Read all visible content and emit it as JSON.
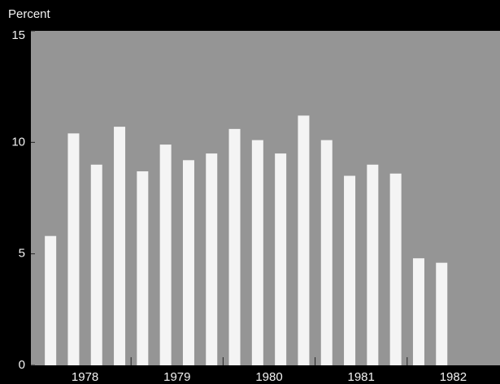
{
  "chart_data": {
    "type": "bar",
    "y_axis_label": "Percent",
    "groups": [
      "1978",
      "1979",
      "1980",
      "1981",
      "1982"
    ],
    "categories": [
      null,
      null,
      null,
      null,
      null,
      null,
      null,
      null,
      null,
      null,
      null,
      null,
      null,
      null,
      null,
      null,
      null,
      null
    ],
    "values": [
      5.8,
      10.4,
      9.0,
      10.7,
      8.7,
      9.9,
      9.2,
      9.5,
      10.6,
      10.1,
      9.5,
      11.2,
      10.1,
      8.5,
      9.0,
      8.6,
      4.8,
      4.6
    ],
    "color": "#f4f4f4",
    "ylim": [
      0,
      15
    ],
    "yticks": [
      0,
      5,
      10,
      15
    ],
    "grid": false
  }
}
